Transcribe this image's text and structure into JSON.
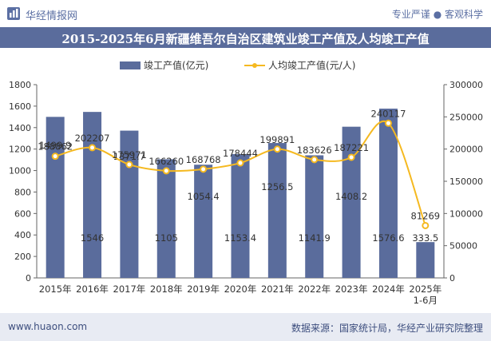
{
  "header": {
    "brand": "华经情报网",
    "tagline": "专业严谨 ● 客观科学"
  },
  "footer": {
    "website": "www.huaon.com",
    "source": "数据来源：国家统计局，华经产业研究院整理"
  },
  "colors": {
    "bar": "#5a6c9c",
    "line": "#f5b920",
    "title_bg": "#5a6c9c"
  },
  "chart_data": {
    "type": "bar",
    "title": "2015-2025年6月新疆维吾尔自治区建筑业竣工产值及人均竣工产值",
    "categories": [
      "2015年",
      "2016年",
      "2017年",
      "2018年",
      "2019年",
      "2020年",
      "2021年",
      "2022年",
      "2023年",
      "2024年",
      "2025年\n1-6月"
    ],
    "series": [
      {
        "name": "竣工产值(亿元)",
        "type": "bar",
        "axis": "left",
        "values": [
          1499.9,
          1546,
          1371.7,
          1105,
          1054.4,
          1153.4,
          1256.5,
          1141.9,
          1408.2,
          1576.6,
          333.5
        ],
        "labels": [
          "1499.9",
          "1546",
          "1371.7",
          "1105",
          "1054.4",
          "1153.4",
          "1256.5",
          "1141.9",
          "1408.2",
          "1576.6",
          "333.5"
        ]
      },
      {
        "name": "人均竣工产值(元/人)",
        "type": "line",
        "axis": "right",
        "values": [
          188862,
          202207,
          175971,
          166260,
          168768,
          178444,
          199891,
          183626,
          187221,
          240117,
          81269
        ],
        "labels": [
          "188862",
          "202207",
          "175971",
          "166260",
          "168768",
          "178444",
          "199891",
          "183626",
          "187221",
          "240117",
          "81269"
        ]
      }
    ],
    "y_left": {
      "min": 0,
      "max": 1800,
      "ticks": [
        "0",
        "200",
        "400",
        "600",
        "800",
        "1000",
        "1200",
        "1400",
        "1600",
        "1800"
      ]
    },
    "y_right": {
      "min": 0,
      "max": 300000,
      "ticks": [
        "0",
        "50000",
        "100000",
        "150000",
        "200000",
        "250000",
        "300000"
      ]
    },
    "legend_position": "top-center",
    "grid": false
  }
}
